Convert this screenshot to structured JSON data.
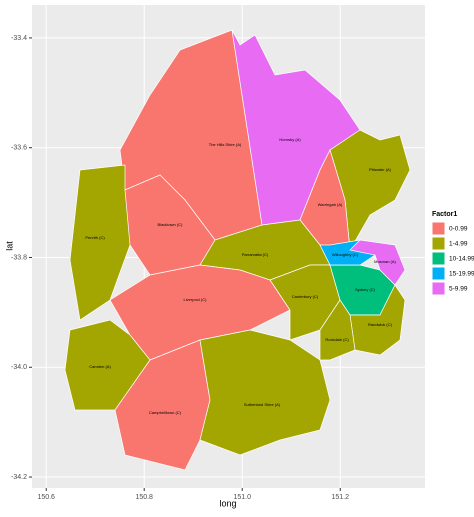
{
  "x_label": "long",
  "y_label": "lat",
  "xlim": [
    150.571,
    151.373
  ],
  "ylim": [
    -34.22,
    -33.34
  ],
  "xticks": [
    150.6,
    150.8,
    {
      "value": 151,
      "label": "151.0"
    },
    151.2
  ],
  "yticks": [
    -33.4,
    -33.6,
    -33.8,
    {
      "value": -34,
      "label": "-34.0"
    },
    -34.2
  ],
  "grid": true,
  "legend": {
    "title": "Factor1",
    "classes": [
      {
        "label": "0-0.99",
        "color": "#f8766d"
      },
      {
        "label": "1-4.99",
        "color": "#a3a500"
      },
      {
        "label": "10-14.99",
        "color": "#00bf7d"
      },
      {
        "label": "15-19.99",
        "color": "#00b0f6"
      },
      {
        "label": "5-9.99",
        "color": "#e76bf3"
      }
    ]
  },
  "regions": [
    {
      "name": "The Hills Shire (A)",
      "class": "0-0.99"
    },
    {
      "name": "Hornsby (A)",
      "class": "5-9.99"
    },
    {
      "name": "Pittwater (A)",
      "class": "1-4.99"
    },
    {
      "name": "Warringah (A)",
      "class": "0-0.99"
    },
    {
      "name": "Penrith (C)",
      "class": "1-4.99"
    },
    {
      "name": "Blacktown (C)",
      "class": "0-0.99"
    },
    {
      "name": "Parramatta (C)",
      "class": "1-4.99"
    },
    {
      "name": "Liverpool (C)",
      "class": "0-0.99"
    },
    {
      "name": "Camden (A)",
      "class": "1-4.99"
    },
    {
      "name": "Campbelltown (C)",
      "class": "0-0.99"
    },
    {
      "name": "Sutherland Shire (A)",
      "class": "1-4.99"
    },
    {
      "name": "Canterbury (C)",
      "class": "1-4.99"
    },
    {
      "name": "Sydney (C)",
      "class": "10-14.99"
    },
    {
      "name": "Willoughby (C)",
      "class": "15-19.99"
    },
    {
      "name": "Mosman (A)",
      "class": "5-9.99"
    },
    {
      "name": "Randwick (C)",
      "class": "1-4.99"
    },
    {
      "name": "Rockdale (C)",
      "class": "1-4.99"
    }
  ]
}
